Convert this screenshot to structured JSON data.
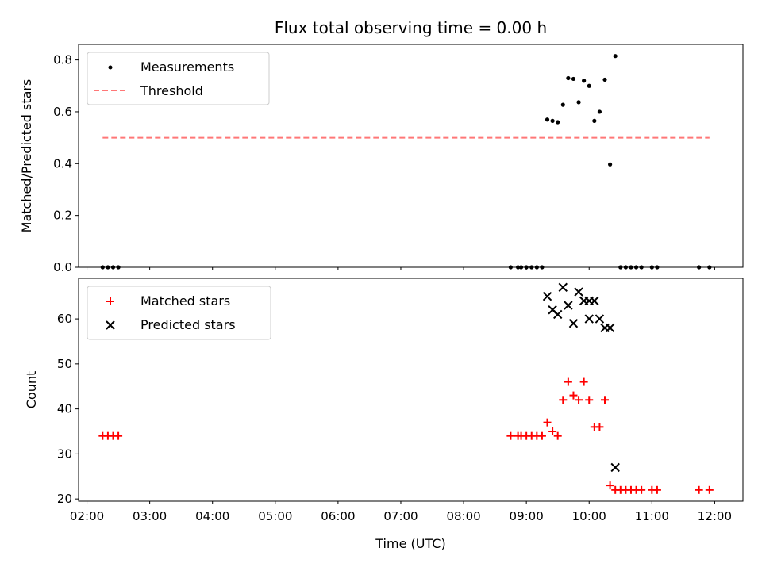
{
  "chart_data": [
    {
      "type": "scatter",
      "title": "Flux total observing time = 0.00 h",
      "ylabel": "Matched/Predicted stars",
      "ylim": [
        0,
        0.86
      ],
      "yticks": [
        "0.0",
        "0.2",
        "0.4",
        "0.6",
        "0.8"
      ],
      "ytick_values": [
        0,
        0.2,
        0.4,
        0.6,
        0.8
      ],
      "legend": {
        "placement": "upper-left",
        "measurements_label": "Measurements",
        "threshold_label": "Threshold"
      },
      "threshold": {
        "value": 0.5,
        "x_start": "02:15",
        "x_end": "11:55",
        "color": "#ff7777"
      },
      "measurements_color": "#000000",
      "measurements": [
        {
          "x": "02:15",
          "y": 0
        },
        {
          "x": "02:20",
          "y": 0
        },
        {
          "x": "02:25",
          "y": 0
        },
        {
          "x": "02:30",
          "y": 0
        },
        {
          "x": "08:45",
          "y": 0
        },
        {
          "x": "08:52",
          "y": 0
        },
        {
          "x": "08:55",
          "y": 0
        },
        {
          "x": "09:00",
          "y": 0
        },
        {
          "x": "09:05",
          "y": 0
        },
        {
          "x": "09:10",
          "y": 0
        },
        {
          "x": "09:15",
          "y": 0
        },
        {
          "x": "09:20",
          "y": 0.57
        },
        {
          "x": "09:25",
          "y": 0.565
        },
        {
          "x": "09:30",
          "y": 0.56
        },
        {
          "x": "09:35",
          "y": 0.627
        },
        {
          "x": "09:40",
          "y": 0.73
        },
        {
          "x": "09:45",
          "y": 0.727
        },
        {
          "x": "09:50",
          "y": 0.637
        },
        {
          "x": "09:55",
          "y": 0.72
        },
        {
          "x": "10:00",
          "y": 0.7
        },
        {
          "x": "10:05",
          "y": 0.565
        },
        {
          "x": "10:10",
          "y": 0.6
        },
        {
          "x": "10:15",
          "y": 0.724
        },
        {
          "x": "10:20",
          "y": 0.397
        },
        {
          "x": "10:25",
          "y": 0.815
        },
        {
          "x": "10:30",
          "y": 0
        },
        {
          "x": "10:35",
          "y": 0
        },
        {
          "x": "10:40",
          "y": 0
        },
        {
          "x": "10:45",
          "y": 0
        },
        {
          "x": "10:50",
          "y": 0
        },
        {
          "x": "11:00",
          "y": 0
        },
        {
          "x": "11:05",
          "y": 0
        },
        {
          "x": "11:45",
          "y": 0
        },
        {
          "x": "11:55",
          "y": 0
        }
      ]
    },
    {
      "type": "scatter",
      "xlabel": "Time (UTC)",
      "ylabel": "Count",
      "ylim": [
        19.5,
        69
      ],
      "yticks": [
        "20",
        "30",
        "40",
        "50",
        "60"
      ],
      "ytick_values": [
        20,
        30,
        40,
        50,
        60
      ],
      "xlim": [
        "01:52",
        "12:27"
      ],
      "xticks": [
        "02:00",
        "03:00",
        "04:00",
        "05:00",
        "06:00",
        "07:00",
        "08:00",
        "09:00",
        "10:00",
        "11:00",
        "12:00"
      ],
      "legend": {
        "placement": "upper-left"
      },
      "series": [
        {
          "name": "Matched stars",
          "marker": "plus",
          "color": "#ff0000",
          "points": [
            {
              "x": "02:15",
              "y": 34
            },
            {
              "x": "02:20",
              "y": 34
            },
            {
              "x": "02:25",
              "y": 34
            },
            {
              "x": "02:30",
              "y": 34
            },
            {
              "x": "08:45",
              "y": 34
            },
            {
              "x": "08:52",
              "y": 34
            },
            {
              "x": "08:55",
              "y": 34
            },
            {
              "x": "09:00",
              "y": 34
            },
            {
              "x": "09:05",
              "y": 34
            },
            {
              "x": "09:10",
              "y": 34
            },
            {
              "x": "09:15",
              "y": 34
            },
            {
              "x": "09:20",
              "y": 37
            },
            {
              "x": "09:25",
              "y": 35
            },
            {
              "x": "09:30",
              "y": 34
            },
            {
              "x": "09:35",
              "y": 42
            },
            {
              "x": "09:40",
              "y": 46
            },
            {
              "x": "09:45",
              "y": 43
            },
            {
              "x": "09:50",
              "y": 42
            },
            {
              "x": "09:55",
              "y": 46
            },
            {
              "x": "10:00",
              "y": 42
            },
            {
              "x": "10:05",
              "y": 36
            },
            {
              "x": "10:10",
              "y": 36
            },
            {
              "x": "10:15",
              "y": 42
            },
            {
              "x": "10:20",
              "y": 23
            },
            {
              "x": "10:25",
              "y": 22
            },
            {
              "x": "10:30",
              "y": 22
            },
            {
              "x": "10:35",
              "y": 22
            },
            {
              "x": "10:40",
              "y": 22
            },
            {
              "x": "10:45",
              "y": 22
            },
            {
              "x": "10:50",
              "y": 22
            },
            {
              "x": "11:00",
              "y": 22
            },
            {
              "x": "11:05",
              "y": 22
            },
            {
              "x": "11:45",
              "y": 22
            },
            {
              "x": "11:55",
              "y": 22
            }
          ]
        },
        {
          "name": "Predicted stars",
          "marker": "x",
          "color": "#000000",
          "points": [
            {
              "x": "09:20",
              "y": 65
            },
            {
              "x": "09:25",
              "y": 62
            },
            {
              "x": "09:30",
              "y": 61
            },
            {
              "x": "09:35",
              "y": 67
            },
            {
              "x": "09:40",
              "y": 63
            },
            {
              "x": "09:45",
              "y": 59
            },
            {
              "x": "09:50",
              "y": 66
            },
            {
              "x": "09:55",
              "y": 64
            },
            {
              "x": "10:00",
              "y": 60
            },
            {
              "x": "10:00",
              "y": 64
            },
            {
              "x": "10:05",
              "y": 64
            },
            {
              "x": "10:10",
              "y": 60
            },
            {
              "x": "10:15",
              "y": 58
            },
            {
              "x": "10:20",
              "y": 58
            },
            {
              "x": "10:25",
              "y": 27
            }
          ]
        }
      ]
    }
  ]
}
